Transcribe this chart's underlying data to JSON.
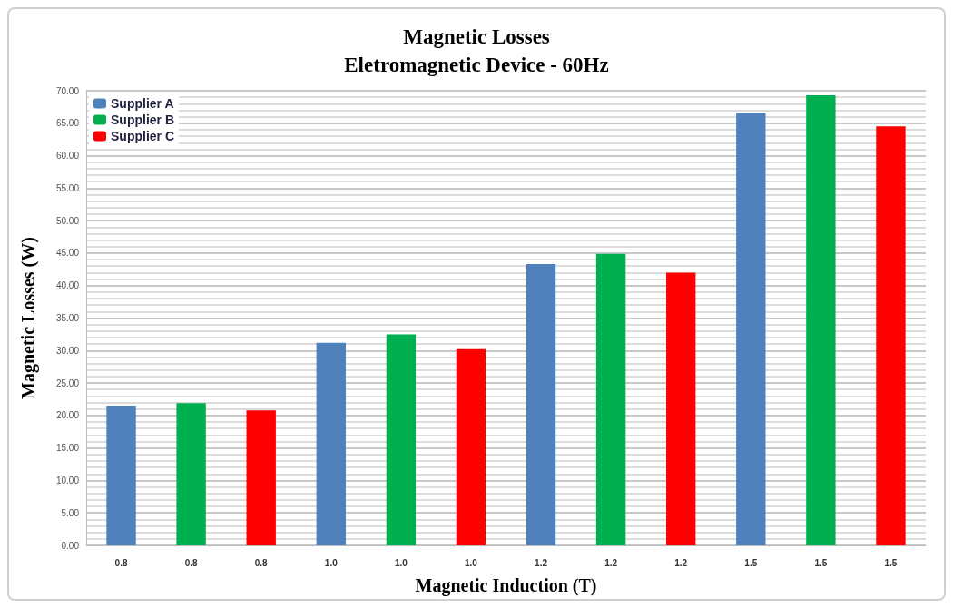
{
  "chart_data": {
    "type": "bar",
    "title": "Magnetic Losses",
    "subtitle": "Eletromagnetic Device - 60Hz",
    "xlabel": "Magnetic Induction (T)",
    "ylabel": "Magnetic Losses (W)",
    "categories": [
      "0.8",
      "0.8",
      "0.8",
      "1.0",
      "1.0",
      "1.0",
      "1.2",
      "1.2",
      "1.2",
      "1.5",
      "1.5",
      "1.5"
    ],
    "series": [
      {
        "name": "Supplier A",
        "color": "#4f81bd",
        "values": [
          21.5,
          null,
          null,
          31.2,
          null,
          null,
          43.3,
          null,
          null,
          66.6,
          null,
          null
        ]
      },
      {
        "name": "Supplier B",
        "color": "#00b050",
        "values": [
          null,
          21.9,
          null,
          null,
          32.5,
          null,
          null,
          44.9,
          null,
          null,
          69.3,
          null
        ]
      },
      {
        "name": "Supplier C",
        "color": "#ff0000",
        "values": [
          null,
          null,
          20.8,
          null,
          null,
          30.2,
          null,
          null,
          42.0,
          null,
          null,
          64.5
        ]
      }
    ],
    "ylim": [
      0,
      70
    ],
    "yticks": [
      {
        "value": 0,
        "label": "0.00"
      },
      {
        "value": 5,
        "label": "5.00"
      },
      {
        "value": 10,
        "label": "10.00"
      },
      {
        "value": 15,
        "label": "15.00"
      },
      {
        "value": 20,
        "label": "20.00"
      },
      {
        "value": 25,
        "label": "25.00"
      },
      {
        "value": 30,
        "label": "30.00"
      },
      {
        "value": 35,
        "label": "35.00"
      },
      {
        "value": 40,
        "label": "40.00"
      },
      {
        "value": 45,
        "label": "45.00"
      },
      {
        "value": 50,
        "label": "50.00"
      },
      {
        "value": 55,
        "label": "55.00"
      },
      {
        "value": 60,
        "label": "60.00"
      },
      {
        "value": 65,
        "label": "65.00"
      },
      {
        "value": 70,
        "label": "70.00"
      }
    ],
    "grid": "y",
    "legend": "top left"
  }
}
